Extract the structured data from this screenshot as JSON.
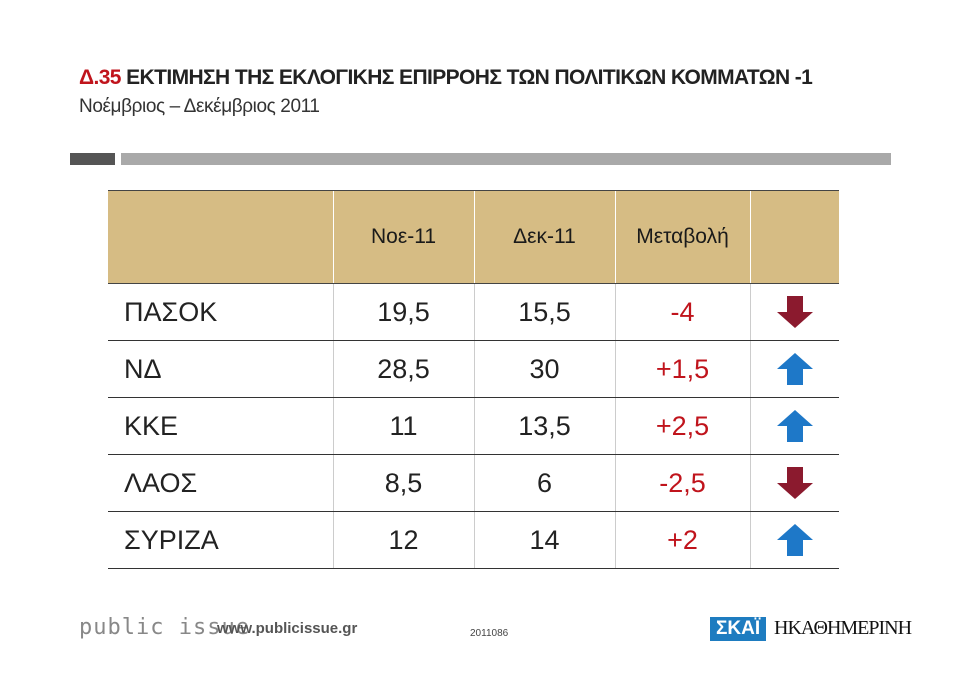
{
  "header": {
    "code": "Δ.35",
    "title": "ΕΚΤΙΜΗΣΗ ΤΗΣ ΕΚΛΟΓΙΚΗΣ ΕΠΙΡΡΟΗΣ ΤΩΝ ΠΟΛΙΤΙΚΩΝ ΚΟΜΜΑΤΩΝ -1",
    "subtitle": "Νοέμβριος – Δεκέμβριος 2011"
  },
  "table": {
    "columns": [
      "",
      "Νοε-11",
      "Δεκ-11",
      "Μεταβολή",
      ""
    ],
    "rows": [
      {
        "party": "ΠΑΣΟΚ",
        "nov": "19,5",
        "dec": "15,5",
        "change": "-4",
        "trend": "down"
      },
      {
        "party": "ΝΔ",
        "nov": "28,5",
        "dec": "30",
        "change": "+1,5",
        "trend": "up"
      },
      {
        "party": "ΚΚΕ",
        "nov": "11",
        "dec": "13,5",
        "change": "+2,5",
        "trend": "up"
      },
      {
        "party": "ΛΑΟΣ",
        "nov": "8,5",
        "dec": "6",
        "change": "-2,5",
        "trend": "down"
      },
      {
        "party": "ΣΥΡΙΖΑ",
        "nov": "12",
        "dec": "14",
        "change": "+2",
        "trend": "up"
      }
    ]
  },
  "colors": {
    "up": "#1e78c8",
    "down": "#8b1a2e",
    "accent": "#c0141c",
    "header_bg": "#d6bc84"
  },
  "footer": {
    "logo": "public issue",
    "url": "www.publicissue.gr",
    "code": "2011086",
    "skai": "ΣΚΑΪ",
    "kathimerini": "ΗΚΑΘΗΜΕΡΙΝΗ"
  }
}
